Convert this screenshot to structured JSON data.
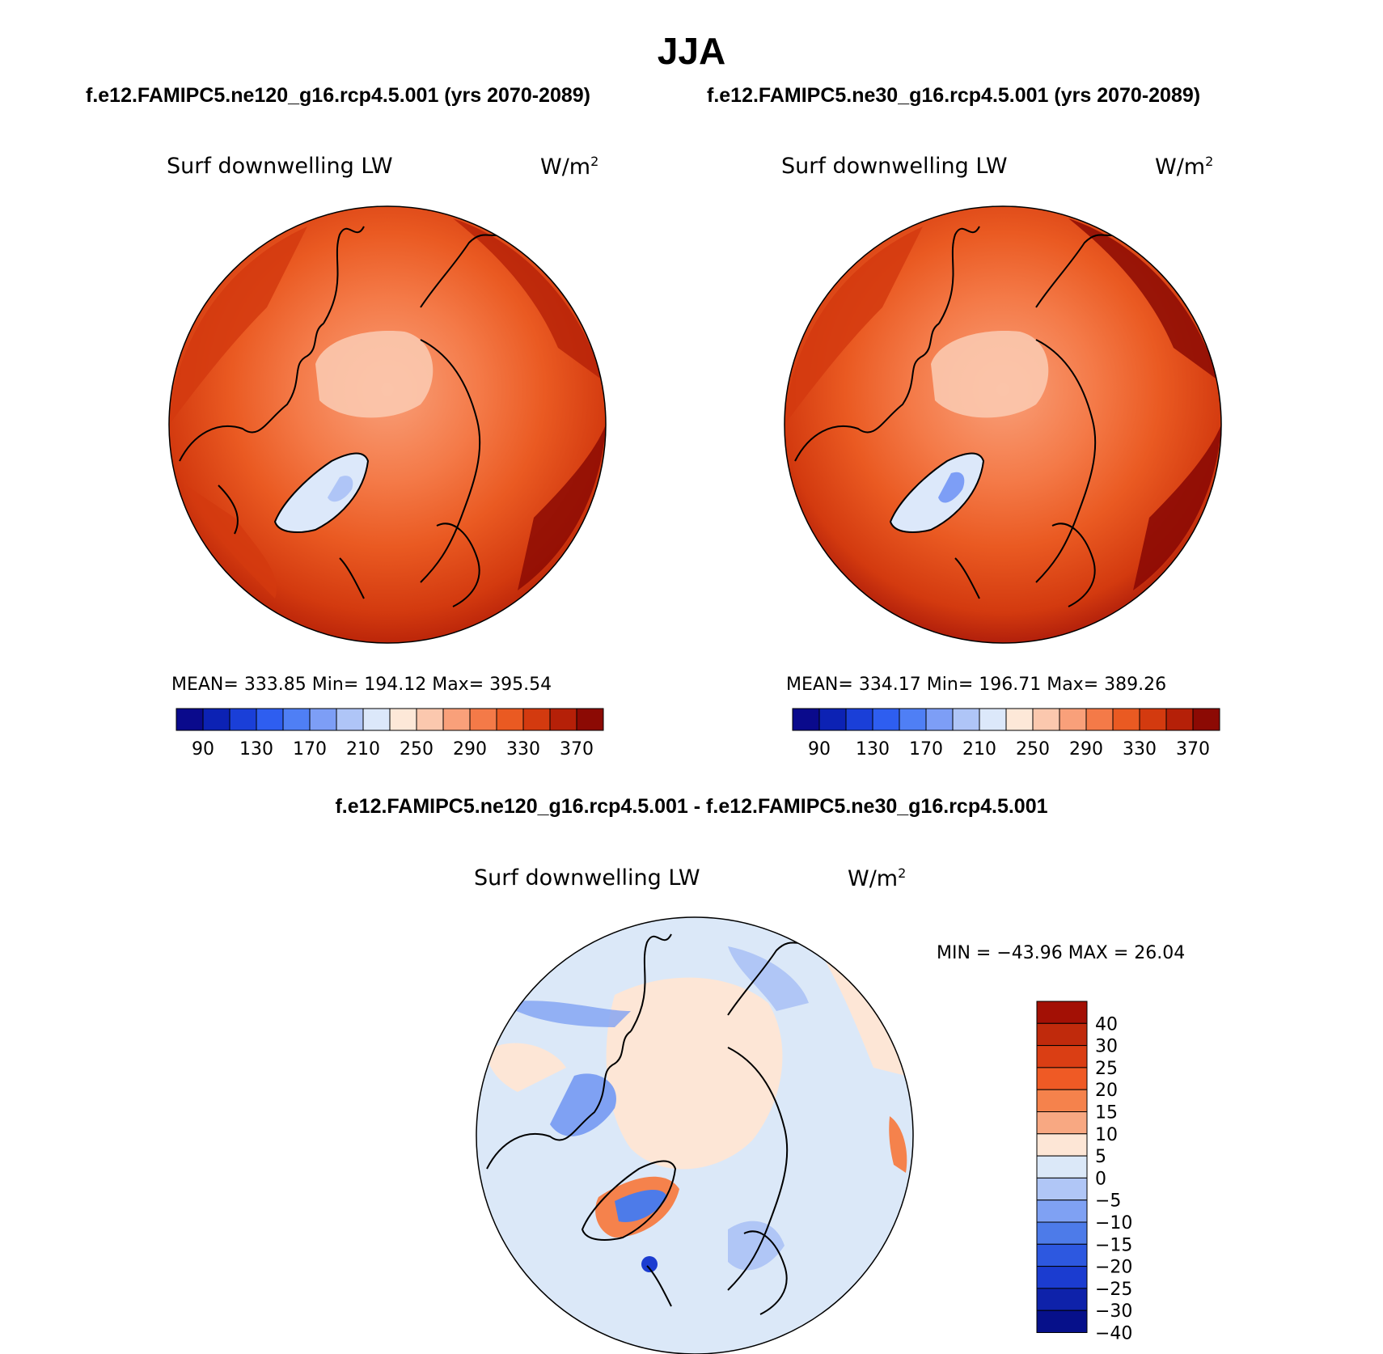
{
  "figure": {
    "title": "JJA",
    "case1_title": "f.e12.FAMIPC5.ne120_g16.rcp4.5.001 (yrs 2070-2089)",
    "case2_title": "f.e12.FAMIPC5.ne30_g16.rcp4.5.001 (yrs 2070-2089)",
    "diff_title": "f.e12.FAMIPC5.ne120_g16.rcp4.5.001 - f.e12.FAMIPC5.ne30_g16.rcp4.5.001"
  },
  "panels": [
    {
      "variable": "Surf downwelling LW",
      "units": "W/m",
      "units_sup": "2",
      "stats": "MEAN= 333.85   Min= 194.12   Max= 395.54"
    },
    {
      "variable": "Surf downwelling LW",
      "units": "W/m",
      "units_sup": "2",
      "stats": "MEAN= 334.17   Min= 196.71   Max= 389.26"
    },
    {
      "variable": "Surf downwelling LW",
      "units": "W/m",
      "units_sup": "2",
      "stats": "MIN = −43.96 MAX =   26.04"
    }
  ],
  "colorbars": {
    "abs_colors": [
      "#0a0a8c",
      "#0c22b4",
      "#1a3fd8",
      "#2e5ef0",
      "#4f7ff5",
      "#7d9ef6",
      "#afc5f7",
      "#dce8fa",
      "#fde8d8",
      "#fbc8ae",
      "#f9a07a",
      "#f47a48",
      "#ea5a22",
      "#d33a0f",
      "#b52008",
      "#8c0a04"
    ],
    "abs_labels": [
      "90",
      "130",
      "170",
      "210",
      "250",
      "290",
      "330",
      "370"
    ],
    "diff_colors_top_to_bottom": [
      "#a31005",
      "#c02a0c",
      "#da3e14",
      "#ef5a25",
      "#f5824c",
      "#f8a882",
      "#fde6d6",
      "#dbe8f8",
      "#b0c6f6",
      "#7fa1f3",
      "#4d7be9",
      "#2d58e0",
      "#1b3cd0",
      "#0e22aa",
      "#06108a"
    ],
    "diff_labels_top_to_bottom": [
      "40",
      "30",
      "25",
      "20",
      "15",
      "10",
      "5",
      "0",
      "−5",
      "−10",
      "−15",
      "−20",
      "−25",
      "−30",
      "−40"
    ]
  }
}
